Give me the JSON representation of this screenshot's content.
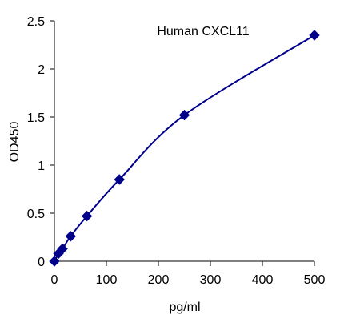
{
  "chart_data": {
    "type": "scatter",
    "title": "Human CXCL11",
    "xlabel": "pg/ml",
    "ylabel": "OD450",
    "xlim": [
      0,
      500
    ],
    "ylim": [
      0,
      2.5
    ],
    "x_ticks": [
      0,
      100,
      200,
      300,
      400,
      500
    ],
    "x_tick_labels": [
      "0",
      "100",
      "200",
      "300",
      "400",
      "500"
    ],
    "y_ticks": [
      0,
      0.5,
      1,
      1.5,
      2,
      2.5
    ],
    "y_tick_labels": [
      "0",
      "0.5",
      "1",
      "1.5",
      "2",
      "2.5"
    ],
    "grid": false,
    "legend": "none",
    "series": [
      {
        "x": [
          0,
          7.8,
          15.6,
          31.25,
          62.5,
          125,
          250,
          500
        ],
        "y": [
          0.0,
          0.08,
          0.13,
          0.26,
          0.47,
          0.85,
          1.52,
          2.35
        ],
        "marker": "diamond",
        "color": "#00008b",
        "line": "smooth"
      }
    ]
  }
}
